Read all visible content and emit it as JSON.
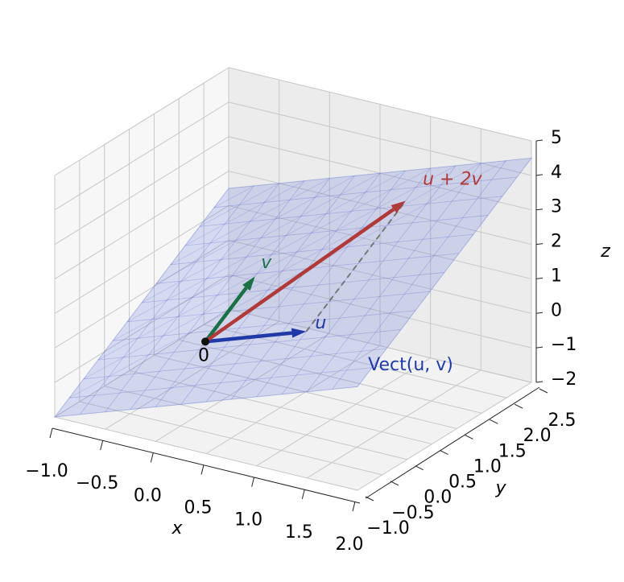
{
  "chart_data": {
    "type": "vector3d",
    "xlabel": "x",
    "ylabel": "y",
    "zlabel": "z",
    "xlim": [
      -1,
      2
    ],
    "ylim": [
      -1,
      2.5
    ],
    "zlim": [
      -2,
      5
    ],
    "xticks": [
      {
        "value": -1,
        "label": "−1.0"
      },
      {
        "value": -0.5,
        "label": "−0.5"
      },
      {
        "value": 0,
        "label": "0.0"
      },
      0.5,
      {
        "value": 1,
        "label": "1.0"
      },
      1.5,
      {
        "value": 2,
        "label": "2.0"
      }
    ],
    "yticks": [
      {
        "value": -1,
        "label": "−1.0"
      },
      {
        "value": -0.5,
        "label": "−0.5"
      },
      {
        "value": 0,
        "label": "0.0"
      },
      0.5,
      {
        "value": 1,
        "label": "1.0"
      },
      1.5,
      {
        "value": 2,
        "label": "2.0"
      },
      2.5
    ],
    "zticks": [
      {
        "value": -2,
        "label": "−2"
      },
      {
        "value": -1,
        "label": "−1"
      },
      0,
      1,
      2,
      3,
      4,
      5
    ],
    "grid": true,
    "origin": {
      "label": "0",
      "values": [
        0,
        0,
        0
      ]
    },
    "plane": {
      "label": "Vect(u, v)",
      "color": "#5568d8"
    },
    "vectors": [
      {
        "name": "u",
        "color": "#1f3aa8",
        "values": [
          1,
          0,
          1
        ]
      },
      {
        "name": "v",
        "color": "#1b7048",
        "values": [
          0,
          1,
          1
        ]
      },
      {
        "name": "u + 2v",
        "color": "#b03a3a",
        "values": [
          1,
          2,
          3
        ]
      }
    ]
  }
}
